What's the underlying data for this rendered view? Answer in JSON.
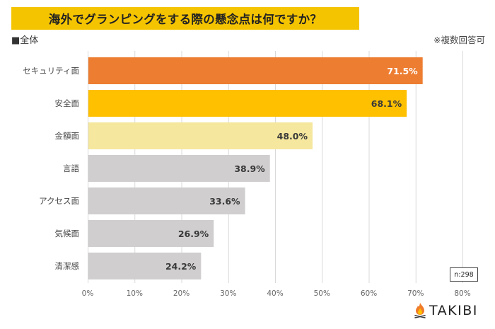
{
  "header": {
    "title": "海外でグランピングをする際の懸念点は何ですか？",
    "group_label": "■全体",
    "note": "※複数回答可"
  },
  "chart_data": {
    "type": "bar",
    "orientation": "horizontal",
    "title": "海外でグランピングをする際の懸念点は何ですか？",
    "xlabel": "",
    "ylabel": "",
    "categories": [
      "セキュリティ面",
      "安全面",
      "金額面",
      "言語",
      "アクセス面",
      "気候面",
      "清潔感"
    ],
    "values": [
      71.5,
      68.1,
      48.0,
      38.9,
      33.6,
      26.9,
      24.2
    ],
    "value_labels": [
      "71.5%",
      "68.1%",
      "48.0%",
      "38.9%",
      "33.6%",
      "26.9%",
      "24.2%"
    ],
    "bar_colors": [
      "#ed7d31",
      "#ffc000",
      "#f5e79e",
      "#d0cece",
      "#d0cece",
      "#d0cece",
      "#d0cece"
    ],
    "label_colors": [
      "#ffffff",
      "#3a3a3a",
      "#3a3a3a",
      "#3a3a3a",
      "#3a3a3a",
      "#3a3a3a",
      "#3a3a3a"
    ],
    "xlim": [
      0,
      80
    ],
    "x_ticks": [
      0,
      10,
      20,
      30,
      40,
      50,
      60,
      70,
      80
    ],
    "x_tick_labels": [
      "0%",
      "10%",
      "20%",
      "30%",
      "40%",
      "50%",
      "60%",
      "70%",
      "80%"
    ],
    "grid": true,
    "sample_size": "n:298"
  },
  "footer": {
    "brand": "TAKIBI",
    "brand_icon": "campfire-icon"
  },
  "colors": {
    "title_bg": "#f5c400",
    "grid": "#d9d9d9"
  }
}
